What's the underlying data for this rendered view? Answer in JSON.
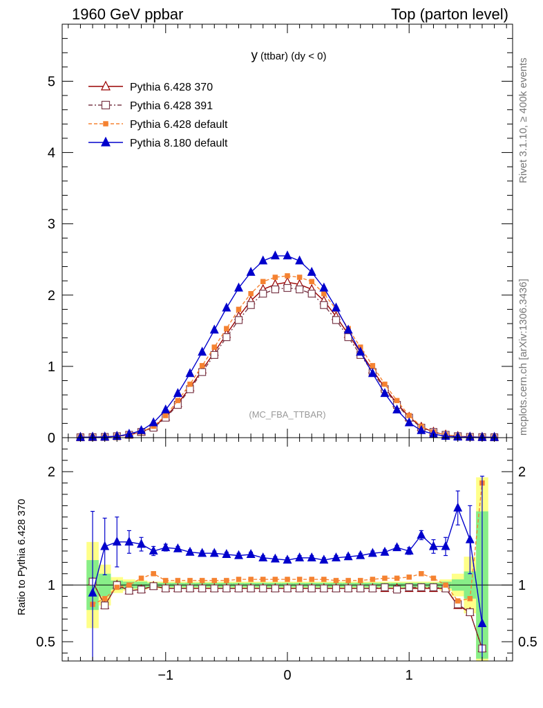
{
  "header": {
    "left": "1960 GeV ppbar",
    "right": "Top (parton level)"
  },
  "side": {
    "upper": "Rivet 3.1.10, ≥ 400k events",
    "lower": "mcplots.cern.ch [arXiv:1306.3436]"
  },
  "chart_data": {
    "type": "line",
    "title": "y (ttbar) (dy < 0)",
    "title_main": "y",
    "title_sub": "(ttbar) (dy < 0)",
    "watermark": "(MC_FBA_TTBAR)",
    "x": [
      -1.7,
      -1.6,
      -1.5,
      -1.4,
      -1.3,
      -1.2,
      -1.1,
      -1.0,
      -0.9,
      -0.8,
      -0.7,
      -0.6,
      -0.5,
      -0.4,
      -0.3,
      -0.2,
      -0.1,
      0.0,
      0.1,
      0.2,
      0.3,
      0.4,
      0.5,
      0.6,
      0.7,
      0.8,
      0.9,
      1.0,
      1.1,
      1.2,
      1.3,
      1.4,
      1.5,
      1.6,
      1.7
    ],
    "xlim": [
      -1.85,
      1.85
    ],
    "x_ticks": [
      -1,
      0,
      1
    ],
    "x_tick_labels": [
      "−1",
      "0",
      "1"
    ],
    "main": {
      "ylim": [
        0,
        5.8
      ],
      "y_ticks": [
        0,
        1,
        2,
        3,
        4,
        5
      ],
      "y_tick_labels": [
        "0",
        "1",
        "2",
        "3",
        "4",
        "5"
      ]
    },
    "ratio": {
      "ylabel": "Ratio to Pythia 6.428 370",
      "ylim": [
        0.33,
        2.3
      ],
      "y_ticks": [
        0.5,
        1,
        2
      ],
      "y_tick_labels": [
        "0.5",
        "1",
        "2"
      ],
      "x": [
        -1.6,
        -1.5,
        -1.4,
        -1.3,
        -1.2,
        -1.1,
        -1.0,
        -0.9,
        -0.8,
        -0.7,
        -0.6,
        -0.5,
        -0.4,
        -0.3,
        -0.2,
        -0.1,
        0.0,
        0.1,
        0.2,
        0.3,
        0.4,
        0.5,
        0.6,
        0.7,
        0.8,
        0.9,
        1.0,
        1.1,
        1.2,
        1.3,
        1.4,
        1.5,
        1.6
      ],
      "band_inner": [
        0.22,
        0.1,
        0.04,
        0.03,
        0.03,
        0.02,
        0.02,
        0.02,
        0.02,
        0.02,
        0.02,
        0.02,
        0.02,
        0.02,
        0.02,
        0.02,
        0.02,
        0.02,
        0.02,
        0.02,
        0.02,
        0.02,
        0.02,
        0.02,
        0.02,
        0.02,
        0.02,
        0.02,
        0.02,
        0.03,
        0.05,
        0.12,
        0.65
      ],
      "band_outer": [
        0.38,
        0.18,
        0.07,
        0.05,
        0.04,
        0.03,
        0.03,
        0.03,
        0.03,
        0.03,
        0.03,
        0.03,
        0.03,
        0.03,
        0.03,
        0.03,
        0.03,
        0.03,
        0.03,
        0.03,
        0.03,
        0.03,
        0.03,
        0.03,
        0.03,
        0.03,
        0.03,
        0.03,
        0.03,
        0.05,
        0.1,
        0.25,
        0.95
      ]
    },
    "series": [
      {
        "name": "Pythia 6.428 370",
        "color": "#990000",
        "marker": "triangle-open",
        "dash": "",
        "values": [
          0.005,
          0.007,
          0.01,
          0.02,
          0.04,
          0.08,
          0.15,
          0.29,
          0.48,
          0.7,
          0.95,
          1.2,
          1.45,
          1.7,
          1.92,
          2.08,
          2.15,
          2.18,
          2.15,
          2.08,
          1.92,
          1.7,
          1.45,
          1.2,
          0.95,
          0.7,
          0.48,
          0.29,
          0.15,
          0.08,
          0.04,
          0.02,
          0.01,
          0.007,
          0.005
        ],
        "ratio": [
          1.03,
          0.82,
          1.0,
          0.95,
          0.96,
          0.99,
          0.97,
          0.97,
          0.97,
          0.97,
          0.97,
          0.97,
          0.97,
          0.97,
          0.97,
          0.97,
          0.97,
          0.97,
          0.97,
          0.97,
          0.97,
          0.97,
          0.97,
          0.97,
          0.97,
          0.97,
          0.97,
          0.97,
          0.97,
          0.97,
          0.82,
          0.76,
          0.44
        ]
      },
      {
        "name": "Pythia 6.428 391",
        "color": "#7a3a4a",
        "marker": "square-open",
        "dash": "6,3,2,3",
        "values": [
          0.005,
          0.007,
          0.01,
          0.02,
          0.04,
          0.08,
          0.14,
          0.28,
          0.46,
          0.68,
          0.92,
          1.16,
          1.41,
          1.65,
          1.86,
          2.02,
          2.08,
          2.1,
          2.08,
          2.02,
          1.86,
          1.65,
          1.41,
          1.16,
          0.92,
          0.68,
          0.46,
          0.28,
          0.14,
          0.08,
          0.04,
          0.02,
          0.01,
          0.007,
          0.005
        ],
        "ratio": [
          1.03,
          0.82,
          1.0,
          0.95,
          0.96,
          0.99,
          0.97,
          0.97,
          0.97,
          0.97,
          0.97,
          0.97,
          0.97,
          0.97,
          0.97,
          0.97,
          0.97,
          0.97,
          0.97,
          0.97,
          0.97,
          0.97,
          0.97,
          0.97,
          0.98,
          0.96,
          0.98,
          0.98,
          0.98,
          0.97,
          0.83,
          0.76,
          0.44
        ]
      },
      {
        "name": "Pythia 6.428 default",
        "color": "#f58231",
        "marker": "square-filled",
        "dash": "5,3",
        "values": [
          0.006,
          0.008,
          0.01,
          0.02,
          0.04,
          0.08,
          0.16,
          0.31,
          0.52,
          0.75,
          1.01,
          1.27,
          1.53,
          1.8,
          2.02,
          2.19,
          2.25,
          2.27,
          2.25,
          2.19,
          2.02,
          1.8,
          1.53,
          1.27,
          1.01,
          0.75,
          0.52,
          0.31,
          0.16,
          0.08,
          0.04,
          0.02,
          0.01,
          0.008,
          0.006
        ],
        "ratio": [
          0.83,
          0.88,
          0.98,
          1.0,
          1.06,
          1.1,
          1.04,
          1.04,
          1.04,
          1.04,
          1.04,
          1.04,
          1.05,
          1.05,
          1.05,
          1.05,
          1.05,
          1.05,
          1.05,
          1.05,
          1.04,
          1.04,
          1.04,
          1.05,
          1.06,
          1.06,
          1.07,
          1.1,
          1.06,
          1.0,
          0.86,
          0.88,
          1.9
        ]
      },
      {
        "name": "Pythia 8.180 default",
        "color": "#0000cc",
        "marker": "triangle-filled",
        "dash": "",
        "values": [
          0.005,
          0.008,
          0.01,
          0.02,
          0.05,
          0.1,
          0.21,
          0.39,
          0.62,
          0.9,
          1.2,
          1.51,
          1.82,
          2.1,
          2.32,
          2.48,
          2.55,
          2.55,
          2.48,
          2.32,
          2.1,
          1.82,
          1.51,
          1.2,
          0.9,
          0.62,
          0.39,
          0.21,
          0.1,
          0.05,
          0.02,
          0.01,
          0.008,
          0.005,
          0.005
        ],
        "ratio": [
          0.93,
          1.34,
          1.38,
          1.38,
          1.36,
          1.3,
          1.33,
          1.32,
          1.29,
          1.28,
          1.28,
          1.27,
          1.26,
          1.27,
          1.24,
          1.23,
          1.22,
          1.24,
          1.24,
          1.22,
          1.24,
          1.25,
          1.26,
          1.28,
          1.29,
          1.33,
          1.3,
          1.44,
          1.34,
          1.34,
          1.68,
          1.4,
          0.66
        ],
        "ratio_err": [
          0.72,
          0.25,
          0.22,
          0.1,
          0.06,
          0.04,
          0.03,
          0.02,
          0.02,
          0.02,
          0.02,
          0.02,
          0.02,
          0.02,
          0.02,
          0.02,
          0.02,
          0.02,
          0.02,
          0.02,
          0.02,
          0.02,
          0.02,
          0.02,
          0.02,
          0.02,
          0.03,
          0.04,
          0.06,
          0.08,
          0.15,
          0.3,
          1.3
        ]
      }
    ]
  }
}
